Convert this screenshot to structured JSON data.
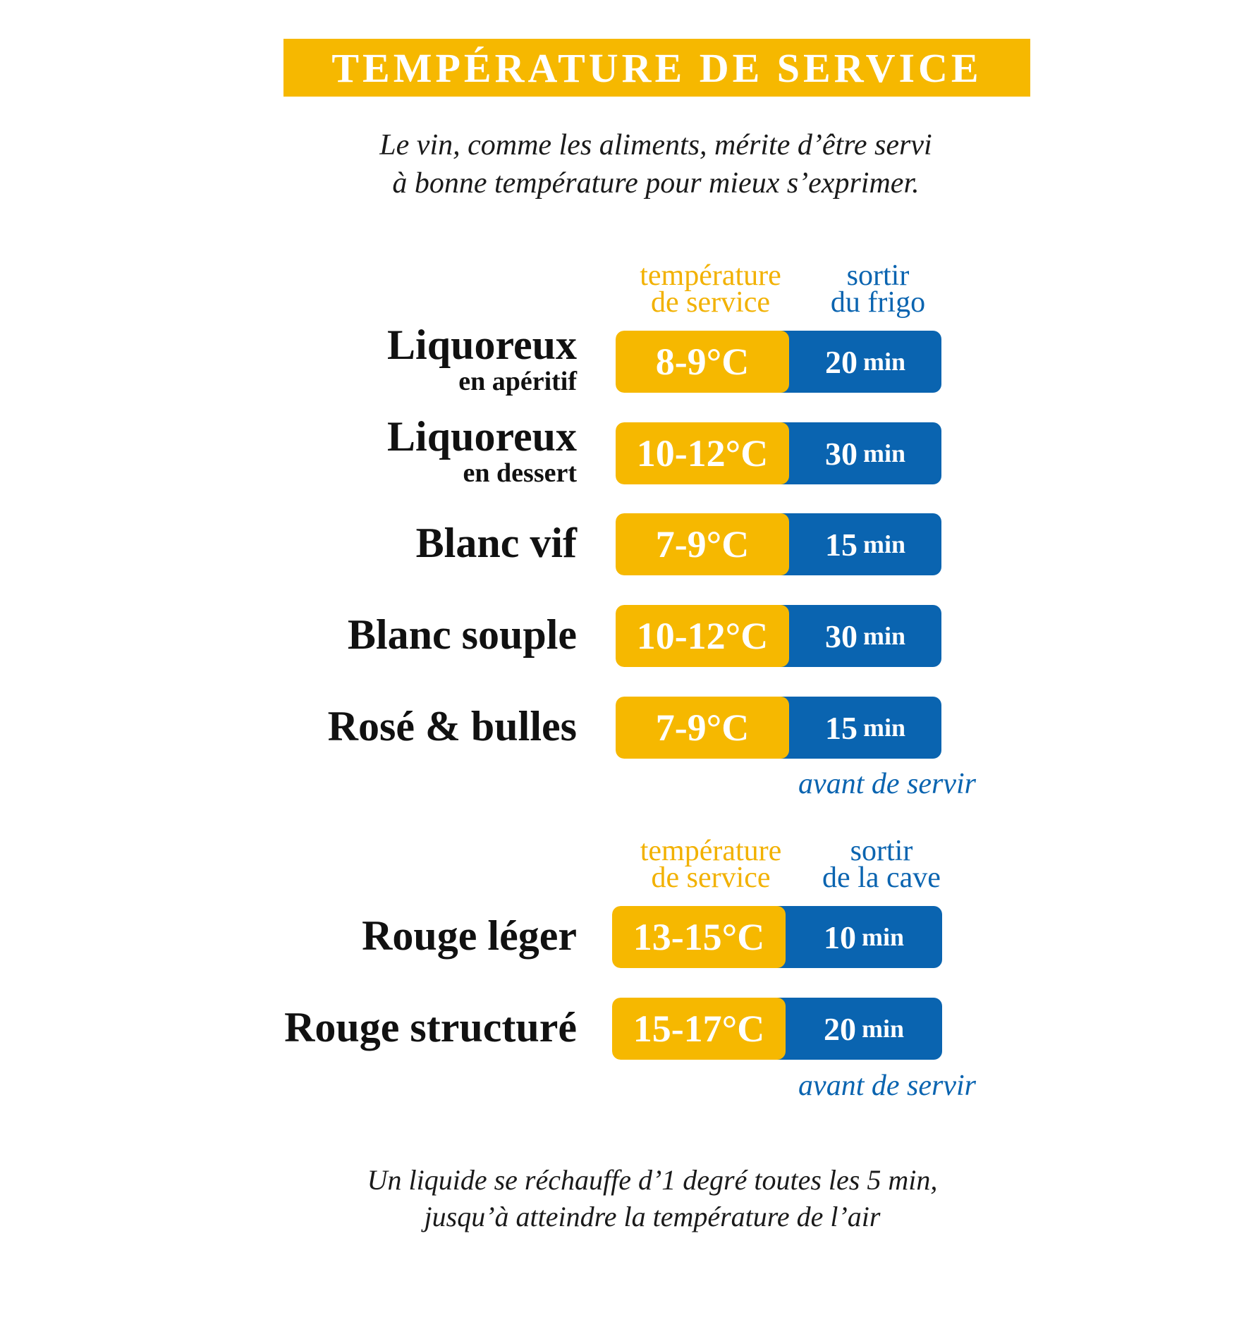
{
  "title": "TEMPÉRATURE DE SERVICE",
  "intro": [
    "Le vin, comme les aliments, mérite d’être servi",
    "à bonne température pour mieux s’exprimer."
  ],
  "colors": {
    "yellow": "#F6B800",
    "blue": "#0A64B0"
  },
  "section1": {
    "header_temp": [
      "température",
      "de service"
    ],
    "header_time": [
      "sortir",
      "du frigo"
    ],
    "rows": [
      {
        "name": "Liquoreux",
        "sub": "en apéritif",
        "temp": "8-9°C",
        "time": "20",
        "unit": "min"
      },
      {
        "name": "Liquoreux",
        "sub": "en dessert",
        "temp": "10-12°C",
        "time": "30",
        "unit": "min"
      },
      {
        "name": "Blanc vif",
        "sub": "",
        "temp": "7-9°C",
        "time": "15",
        "unit": "min"
      },
      {
        "name": "Blanc souple",
        "sub": "",
        "temp": "10-12°C",
        "time": "30",
        "unit": "min"
      },
      {
        "name": "Rosé & bulles",
        "sub": "",
        "temp": "7-9°C",
        "time": "15",
        "unit": "min"
      }
    ],
    "note": "avant de servir"
  },
  "section2": {
    "header_temp": [
      "température",
      "de service"
    ],
    "header_time": [
      "sortir",
      "de la cave"
    ],
    "rows": [
      {
        "name": "Rouge léger",
        "temp": "13-15°C",
        "time": "10",
        "unit": "min"
      },
      {
        "name": "Rouge structuré",
        "temp": "15-17°C",
        "time": "20",
        "unit": "min"
      }
    ],
    "note": "avant de servir"
  },
  "footer": [
    "Un liquide se réchauffe d’1 degré toutes les 5 min,",
    "jusqu’à atteindre la température de l’air"
  ]
}
